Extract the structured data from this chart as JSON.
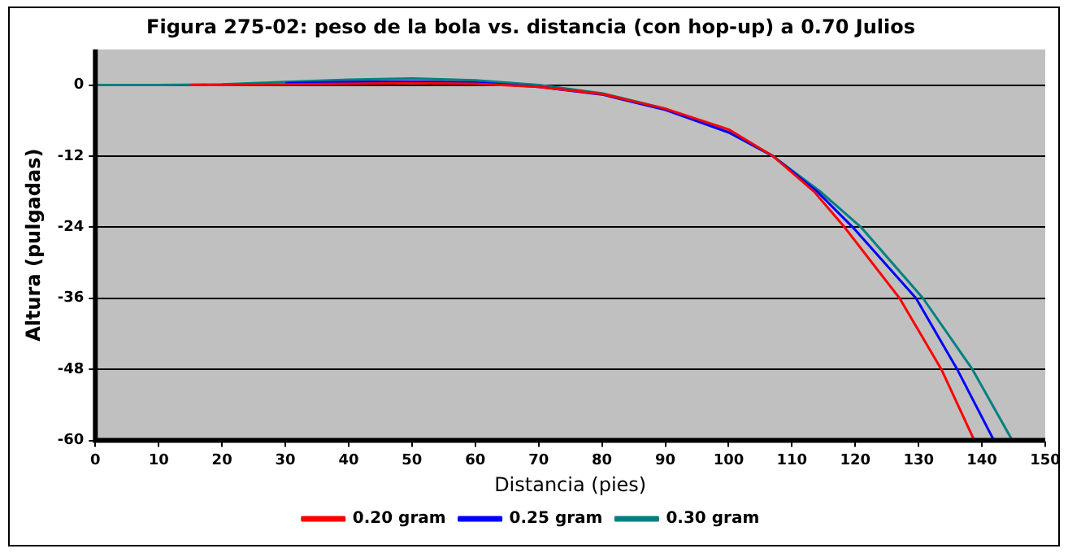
{
  "chart_data": {
    "type": "line",
    "title": "Figura 275-02: peso de la bola vs. distancia (con hop-up) a 0.70 Julios",
    "xlabel": "Distancia (pies)",
    "ylabel": "Altura (pulgadas)",
    "xlim": [
      0,
      150
    ],
    "xticks": [
      0,
      10,
      20,
      30,
      40,
      50,
      60,
      70,
      80,
      90,
      100,
      110,
      120,
      130,
      140,
      150
    ],
    "ylim": [
      -60,
      6
    ],
    "yticks": [
      0,
      -12,
      -24,
      -36,
      -48,
      -60
    ],
    "grid": "y",
    "legend": "bottom",
    "marker": "none",
    "line_style": "solid",
    "series": [
      {
        "name": "0.20 gram",
        "color": "#ff0000",
        "x": [
          15,
          30,
          40,
          50,
          60,
          70,
          80,
          90,
          100,
          107,
          113.5,
          118.3,
          127,
          133.6,
          138.8
        ],
        "values": [
          0,
          0.1,
          0.2,
          0.3,
          0.2,
          -0.3,
          -1.5,
          -4,
          -7.5,
          -12,
          -18,
          -24,
          -36,
          -48,
          -60
        ]
      },
      {
        "name": "0.25 gram",
        "color": "#0000ff",
        "x": [
          30,
          40,
          50,
          60,
          70,
          80,
          90,
          100,
          107,
          114,
          119.6,
          129.6,
          136.1,
          141.9
        ],
        "values": [
          0.3,
          0.5,
          0.6,
          0.4,
          -0.3,
          -1.6,
          -4.2,
          -8,
          -12,
          -18,
          -24,
          -36,
          -48,
          -60
        ]
      },
      {
        "name": "0.30 gram",
        "color": "#008080",
        "x": [
          0,
          10,
          20,
          30,
          40,
          50,
          60,
          70,
          80,
          90,
          100,
          107,
          114.5,
          120.9,
          130.7,
          138.5,
          144.8
        ],
        "values": [
          0,
          0,
          0.1,
          0.5,
          0.9,
          1.1,
          0.8,
          0,
          -1.4,
          -4,
          -8,
          -12,
          -18,
          -24,
          -36,
          -48,
          -60
        ]
      }
    ]
  }
}
